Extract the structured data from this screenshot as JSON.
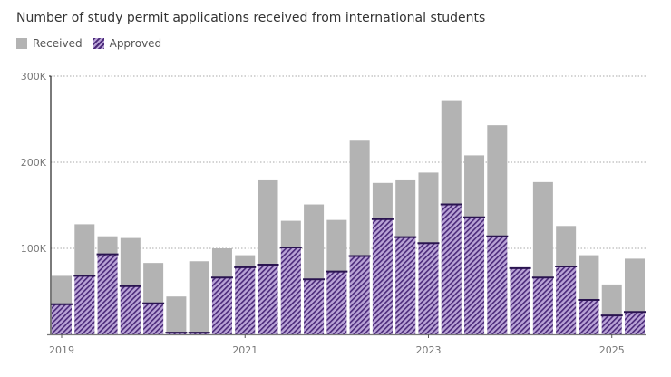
{
  "subtitle": "Number of study permit applications received from international students",
  "legend": {
    "received": "Received",
    "approved": "Approved"
  },
  "colors": {
    "received": "#b3b3b3",
    "approved_fill": "#b9a3d6",
    "approved_stripe": "#4b2a7a"
  },
  "chart_data": {
    "type": "bar",
    "layout": "overlapping",
    "periods": [
      "2019 Q1",
      "2019 Q2",
      "2019 Q3",
      "2019 Q4",
      "2020 Q1",
      "2020 Q2",
      "2020 Q3",
      "2020 Q4",
      "2021 Q1",
      "2021 Q2",
      "2021 Q3",
      "2021 Q4",
      "2022 Q1",
      "2022 Q2",
      "2022 Q3",
      "2022 Q4",
      "2023 Q1",
      "2023 Q2",
      "2023 Q3",
      "2023 Q4",
      "2024 Q1",
      "2024 Q2",
      "2024 Q3",
      "2024 Q4",
      "2025 Q1",
      "2025 Q2"
    ],
    "series": [
      {
        "name": "Received",
        "values": [
          68,
          128,
          114,
          112,
          83,
          44,
          85,
          100,
          92,
          179,
          132,
          151,
          133,
          225,
          176,
          179,
          188,
          272,
          208,
          243,
          77,
          177,
          126,
          92,
          58,
          88
        ]
      },
      {
        "name": "Approved",
        "values": [
          35,
          68,
          93,
          56,
          36,
          2,
          2,
          66,
          78,
          81,
          101,
          64,
          73,
          91,
          134,
          113,
          106,
          151,
          136,
          114,
          77,
          66,
          79,
          40,
          22,
          26
        ]
      }
    ],
    "units": "thousands",
    "yticks": [
      "100K",
      "200K",
      "300K"
    ],
    "ytick_values": [
      100,
      200,
      300
    ],
    "xticks": [
      "2019",
      "2021",
      "2023",
      "2025"
    ],
    "ylim": [
      0,
      300
    ],
    "grid": "horizontal dotted",
    "legend_position": "top-left"
  }
}
